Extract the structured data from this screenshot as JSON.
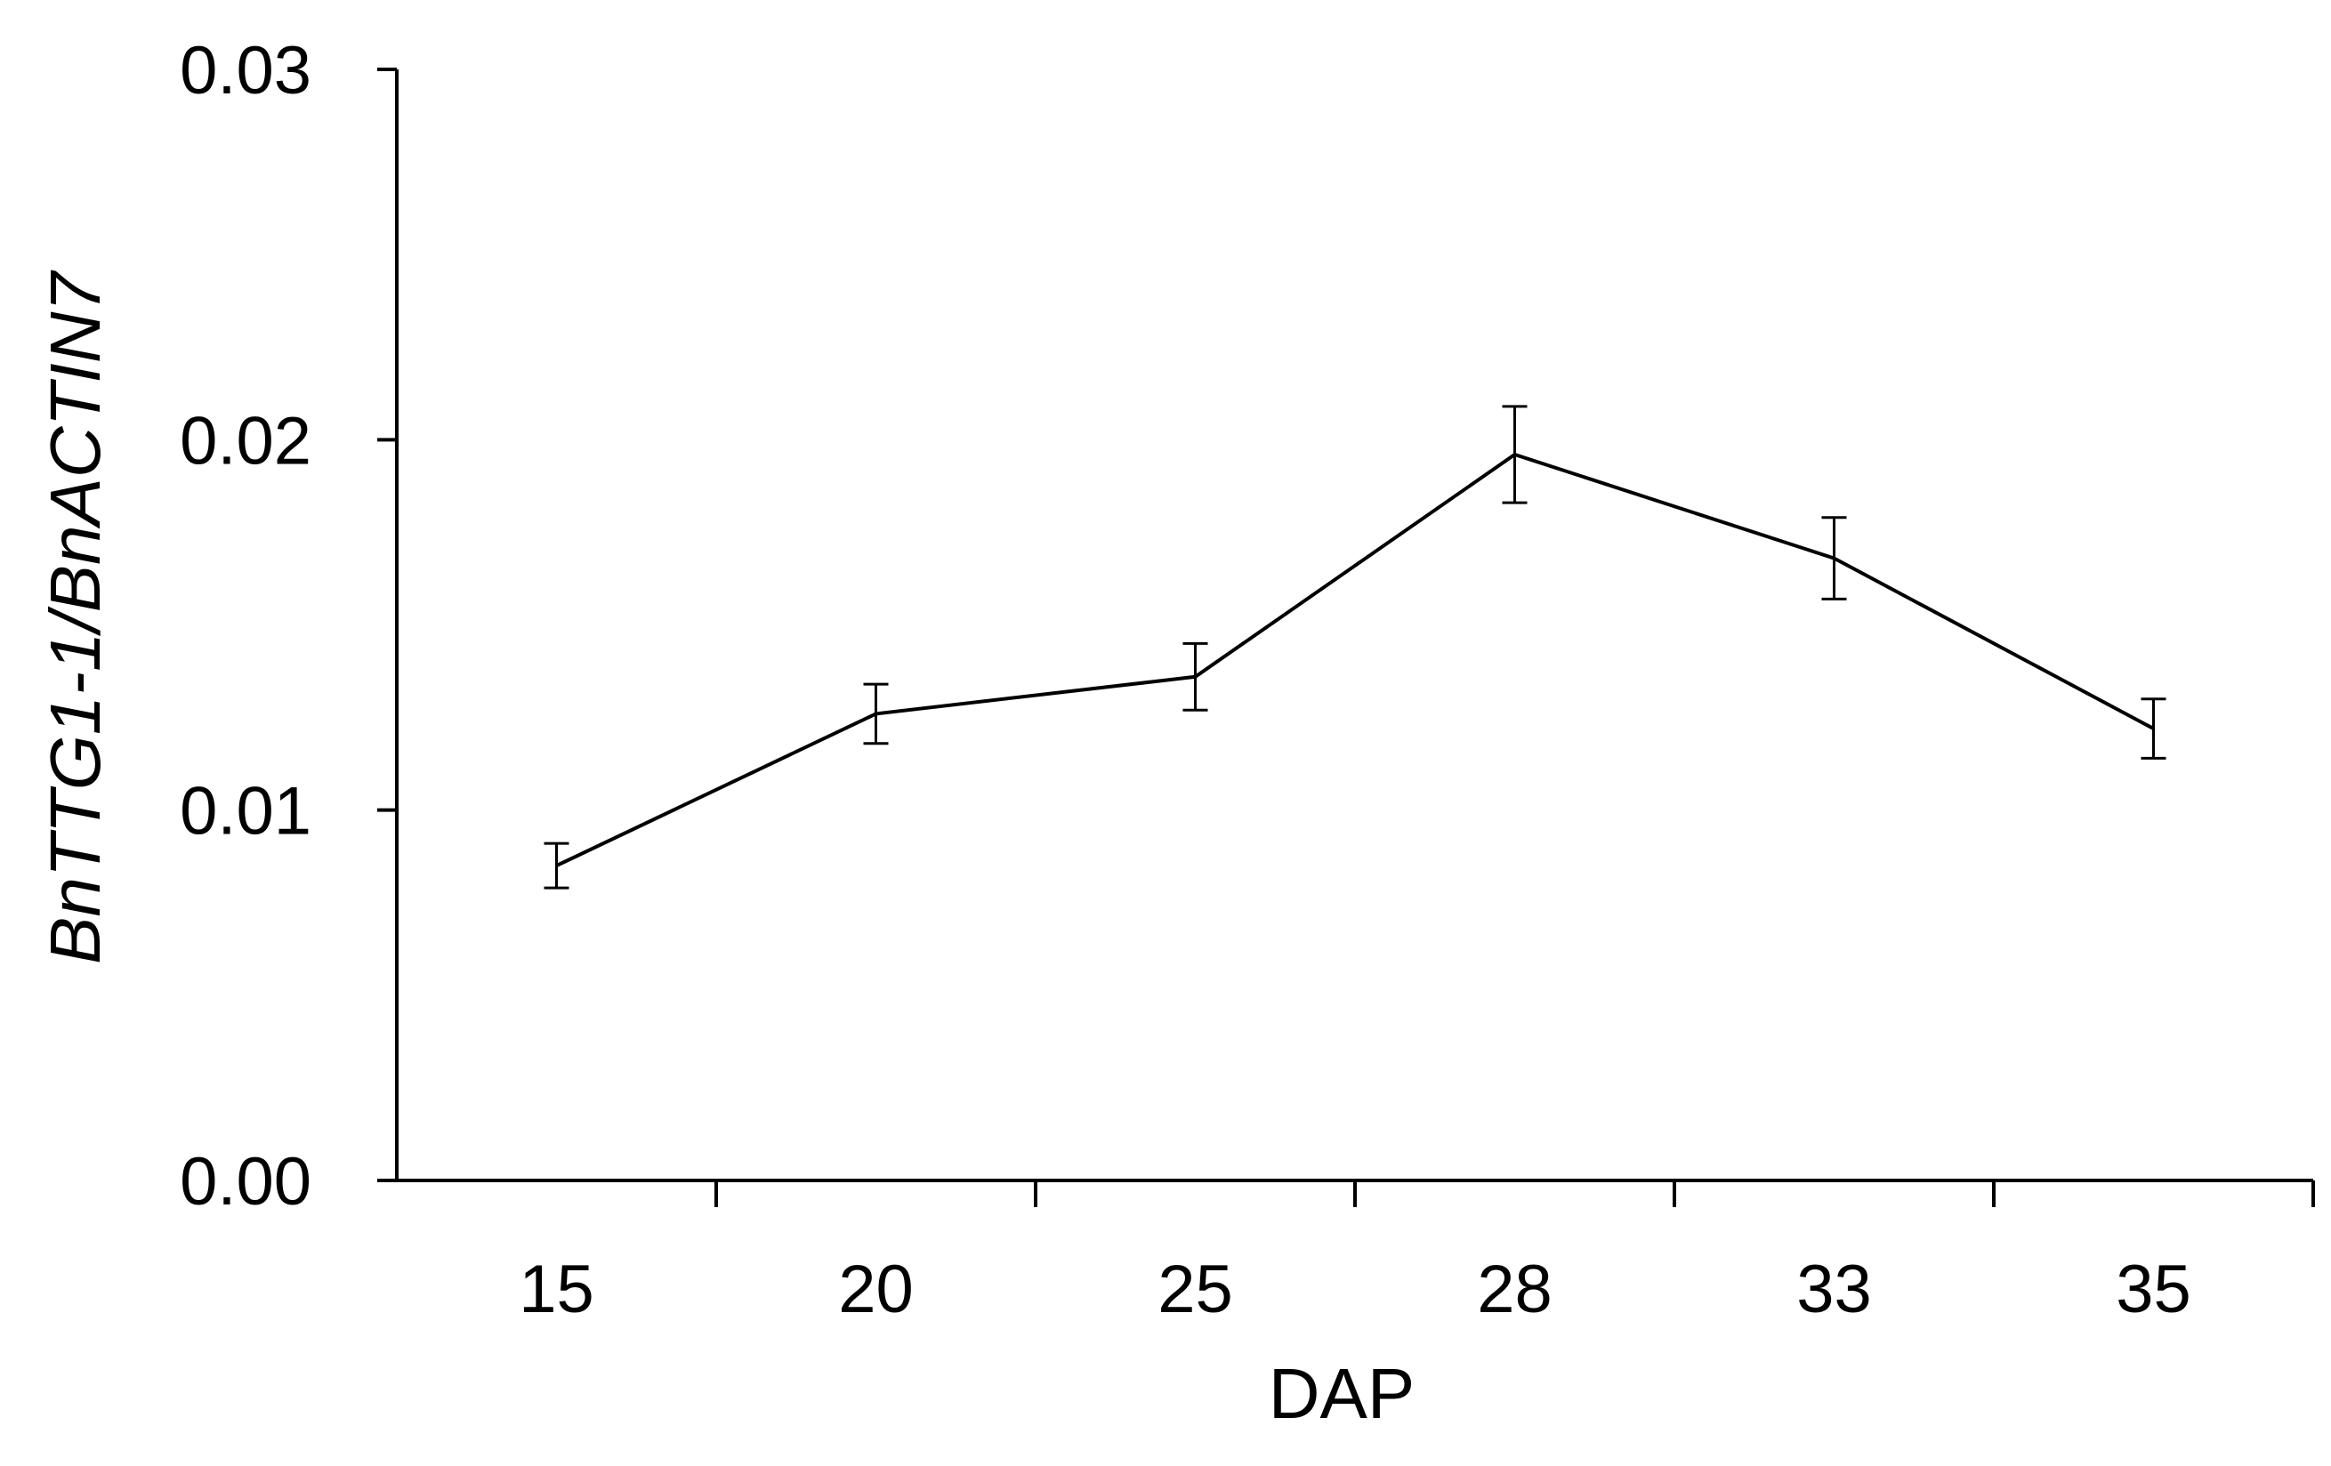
{
  "chart_data": {
    "type": "line",
    "title": "",
    "xlabel": "DAP",
    "ylabel": "BnTTG1-1/BnACTIN7",
    "categories": [
      "15",
      "20",
      "25",
      "28",
      "33",
      "35"
    ],
    "series": [
      {
        "values": [
          0.0085,
          0.0126,
          0.0136,
          0.0196,
          0.0168,
          0.0122
        ],
        "errors": [
          0.0006,
          0.0008,
          0.0009,
          0.0013,
          0.0011,
          0.0008
        ]
      }
    ],
    "ylim": [
      0,
      0.03
    ],
    "yticks": [
      {
        "value": 0,
        "label": "0.00"
      },
      {
        "value": 0.01,
        "label": "0.01"
      },
      {
        "value": 0.02,
        "label": "0.02"
      },
      {
        "value": 0.03,
        "label": "0.03"
      }
    ],
    "grid": false,
    "legend": "none",
    "colors": {
      "line": "#000000",
      "background": "#ffffff"
    }
  }
}
